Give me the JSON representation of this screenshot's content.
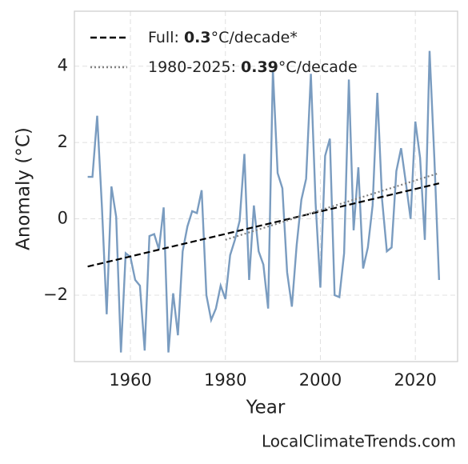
{
  "chart_data": {
    "type": "line",
    "xlabel": "Year",
    "ylabel": "Anomaly (°C)",
    "source": "LocalClimateTrends.com",
    "x": [
      1951,
      1952,
      1953,
      1954,
      1955,
      1956,
      1957,
      1958,
      1959,
      1960,
      1961,
      1962,
      1963,
      1964,
      1965,
      1966,
      1967,
      1968,
      1969,
      1970,
      1971,
      1972,
      1973,
      1974,
      1975,
      1976,
      1977,
      1978,
      1979,
      1980,
      1981,
      1982,
      1983,
      1984,
      1985,
      1986,
      1987,
      1988,
      1989,
      1990,
      1991,
      1992,
      1993,
      1994,
      1995,
      1996,
      1997,
      1998,
      1999,
      2000,
      2001,
      2002,
      2003,
      2004,
      2005,
      2006,
      2007,
      2008,
      2009,
      2010,
      2011,
      2012,
      2013,
      2014,
      2015,
      2016,
      2017,
      2018,
      2019,
      2020,
      2021,
      2022,
      2023,
      2024,
      2025
    ],
    "series": [
      {
        "color": "#7a9cc0",
        "values": [
          1.1,
          1.1,
          2.7,
          0.3,
          -2.5,
          0.85,
          0.05,
          -3.5,
          -0.9,
          -1.0,
          -1.6,
          -1.75,
          -3.45,
          -0.45,
          -0.4,
          -0.8,
          0.3,
          -3.5,
          -1.95,
          -3.05,
          -0.85,
          -0.2,
          0.2,
          0.15,
          0.75,
          -2.0,
          -2.65,
          -2.35,
          -1.75,
          -2.1,
          -0.95,
          -0.55,
          -0.05,
          1.7,
          -1.6,
          0.35,
          -0.85,
          -1.2,
          -2.35,
          3.9,
          1.2,
          0.8,
          -1.4,
          -2.3,
          -0.7,
          0.5,
          1.05,
          3.8,
          0.4,
          -1.8,
          1.65,
          2.1,
          -2.0,
          -2.05,
          -0.9,
          3.65,
          -0.3,
          1.35,
          -1.3,
          -0.75,
          0.35,
          3.3,
          0.5,
          -0.85,
          -0.75,
          1.25,
          1.85,
          0.95,
          0.0,
          2.55,
          1.6,
          -0.55,
          4.4,
          1.6,
          -1.6
        ]
      },
      {
        "color": "#000000",
        "style": "dashed",
        "x": [
          1951,
          2025
        ],
        "values": [
          -1.25,
          0.93
        ],
        "label_parts": [
          {
            "text": "Full: "
          },
          {
            "text": "0.3",
            "bold": true
          },
          {
            "text": "°C/decade*"
          }
        ]
      },
      {
        "color": "#808080",
        "style": "dotted",
        "x": [
          1980,
          2025
        ],
        "values": [
          -0.55,
          1.2
        ],
        "label_parts": [
          {
            "text": "1980-2025: "
          },
          {
            "text": "0.39",
            "bold": true
          },
          {
            "text": "°C/decade"
          }
        ]
      }
    ],
    "xlim": [
      1948.2,
      2028.9
    ],
    "ylim": [
      -3.74,
      5.44
    ],
    "xticks": [
      1960,
      1980,
      2000,
      2020
    ],
    "yticks": [
      {
        "value": -2,
        "label": "−2"
      },
      0,
      2,
      4
    ],
    "grid": true,
    "legend": "upper left"
  }
}
